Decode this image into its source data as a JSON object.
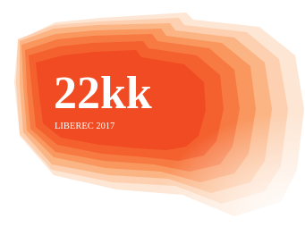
{
  "logo": {
    "title": "22kk",
    "subtitle": "LIBEREC 2017"
  }
}
